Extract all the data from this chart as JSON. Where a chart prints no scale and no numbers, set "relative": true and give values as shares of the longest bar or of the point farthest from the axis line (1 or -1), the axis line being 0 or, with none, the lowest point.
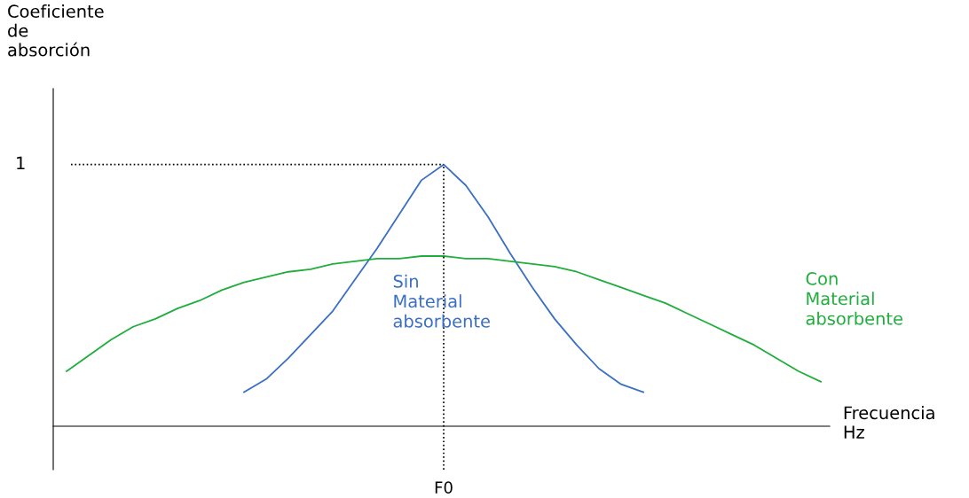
{
  "chart_data": {
    "type": "line",
    "relative": true,
    "xlabel": "Frecuencia\nHz",
    "annotations": [
      "Coeficiente\nde\nabsorción",
      "F0"
    ],
    "categories": [
      null,
      null,
      null,
      null,
      null,
      null,
      null,
      null,
      null,
      null,
      null,
      null,
      null,
      null,
      null,
      null,
      null,
      null,
      null,
      null,
      null,
      null,
      null,
      null,
      null,
      null,
      null,
      null,
      null,
      null,
      null,
      null,
      null,
      null,
      null
    ],
    "series": [
      {
        "name": "Sin\nMaterial\nabsorbente",
        "color": "#3a6fc4",
        "values": [
          null,
          null,
          null,
          null,
          null,
          null,
          null,
          null,
          0.13,
          0.18,
          0.26,
          0.35,
          0.44,
          0.56,
          0.68,
          0.81,
          0.94,
          1.0,
          0.92,
          0.8,
          0.66,
          0.53,
          0.41,
          0.31,
          0.22,
          0.16,
          0.13,
          null,
          null,
          null,
          null,
          null,
          null,
          null,
          null
        ]
      },
      {
        "name": "Con\nMaterial\nabsorbente",
        "color": "#1fae3c",
        "values": [
          0.21,
          0.27,
          0.33,
          0.38,
          0.41,
          0.45,
          0.48,
          0.52,
          0.55,
          0.57,
          0.59,
          0.6,
          0.62,
          0.63,
          0.64,
          0.64,
          0.65,
          0.65,
          0.64,
          0.64,
          0.63,
          0.62,
          0.61,
          0.59,
          0.56,
          0.53,
          0.5,
          0.47,
          0.43,
          0.39,
          0.35,
          0.31,
          0.26,
          0.21,
          0.17
        ]
      }
    ],
    "ref_lines": [
      {
        "axis": "y",
        "value": 1,
        "label": "1",
        "line_style": "dotted",
        "color": "#000000"
      }
    ],
    "legend": false,
    "marker": "none",
    "line_style": "solid"
  }
}
